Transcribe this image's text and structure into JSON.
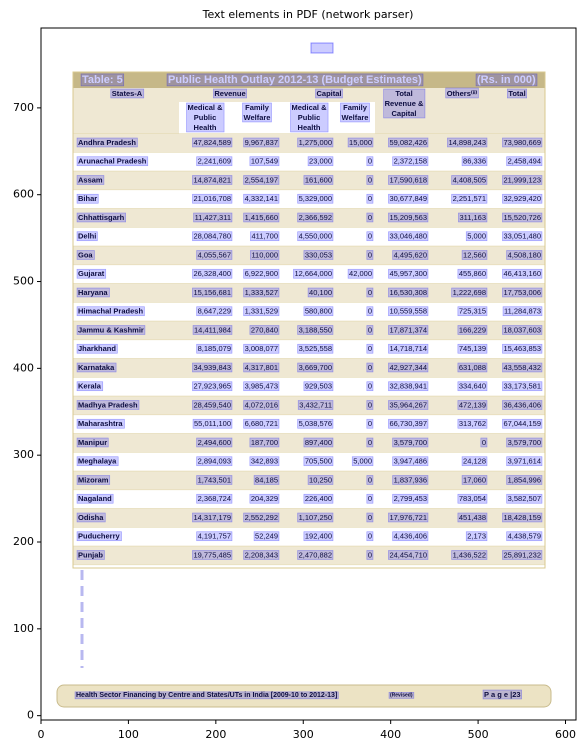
{
  "chart_data": {
    "type": "pdf-page",
    "title": "Text elements in PDF (network parser)",
    "xlim": [
      0,
      612
    ],
    "ylim": [
      -5,
      792
    ],
    "xticks": [
      0,
      100,
      200,
      300,
      400,
      500,
      600
    ],
    "yticks": [
      0,
      100,
      200,
      300,
      400,
      500,
      600,
      700
    ]
  },
  "page": {
    "table_label": "Table: 5",
    "table_title": "Public Health Outlay 2012-13 (Budget Estimates)",
    "table_unit": "(Rs. in 000)",
    "header": {
      "state": "States-A",
      "revenue": "Revenue",
      "capital": "Capital",
      "total_rc": "Total Revenue & Capital",
      "others": "Others⁽ⁱⁱ⁾",
      "total": "Total",
      "sub": [
        "Medical & Public Health",
        "Family Welfare",
        "Medical & Public Health",
        "Family Welfare"
      ]
    },
    "rows": [
      [
        "Andhra Pradesh",
        "47,824,589",
        "9,967,837",
        "1,275,000",
        "15,000",
        "59,082,426",
        "14,898,243",
        "73,980,669"
      ],
      [
        "Arunachal Pradesh",
        "2,241,609",
        "107,549",
        "23,000",
        "0",
        "2,372,158",
        "86,336",
        "2,458,494"
      ],
      [
        "Assam",
        "14,874,821",
        "2,554,197",
        "161,600",
        "0",
        "17,590,618",
        "4,408,505",
        "21,999,123"
      ],
      [
        "Bihar",
        "21,016,708",
        "4,332,141",
        "5,329,000",
        "0",
        "30,677,849",
        "2,251,571",
        "32,929,420"
      ],
      [
        "Chhattisgarh",
        "11,427,311",
        "1,415,660",
        "2,366,592",
        "0",
        "15,209,563",
        "311,163",
        "15,520,726"
      ],
      [
        "Delhi",
        "28,084,780",
        "411,700",
        "4,550,000",
        "0",
        "33,046,480",
        "5,000",
        "33,051,480"
      ],
      [
        "Goa",
        "4,055,567",
        "110,000",
        "330,053",
        "0",
        "4,495,620",
        "12,560",
        "4,508,180"
      ],
      [
        "Gujarat",
        "26,328,400",
        "6,922,900",
        "12,664,000",
        "42,000",
        "45,957,300",
        "455,860",
        "46,413,160"
      ],
      [
        "Haryana",
        "15,156,681",
        "1,333,527",
        "40,100",
        "0",
        "16,530,308",
        "1,222,698",
        "17,753,006"
      ],
      [
        "Himachal Pradesh",
        "8,647,229",
        "1,331,529",
        "580,800",
        "0",
        "10,559,558",
        "725,315",
        "11,284,873"
      ],
      [
        "Jammu & Kashmir",
        "14,411,984",
        "270,840",
        "3,188,550",
        "0",
        "17,871,374",
        "166,229",
        "18,037,603"
      ],
      [
        "Jharkhand",
        "8,185,079",
        "3,008,077",
        "3,525,558",
        "0",
        "14,718,714",
        "745,139",
        "15,463,853"
      ],
      [
        "Karnataka",
        "34,939,843",
        "4,317,801",
        "3,669,700",
        "0",
        "42,927,344",
        "631,088",
        "43,558,432"
      ],
      [
        "Kerala",
        "27,923,965",
        "3,985,473",
        "929,503",
        "0",
        "32,838,941",
        "334,640",
        "33,173,581"
      ],
      [
        "Madhya Pradesh",
        "28,459,540",
        "4,072,016",
        "3,432,711",
        "0",
        "35,964,267",
        "472,139",
        "36,436,406"
      ],
      [
        "Maharashtra",
        "55,011,100",
        "6,680,721",
        "5,038,576",
        "0",
        "66,730,397",
        "313,762",
        "67,044,159"
      ],
      [
        "Manipur",
        "2,494,600",
        "187,700",
        "897,400",
        "0",
        "3,579,700",
        "0",
        "3,579,700"
      ],
      [
        "Meghalaya",
        "2,894,093",
        "342,893",
        "705,500",
        "5,000",
        "3,947,486",
        "24,128",
        "3,971,614"
      ],
      [
        "Mizoram",
        "1,743,501",
        "84,185",
        "10,250",
        "0",
        "1,837,936",
        "17,060",
        "1,854,996"
      ],
      [
        "Nagaland",
        "2,368,724",
        "204,329",
        "226,400",
        "0",
        "2,799,453",
        "783,054",
        "3,582,507"
      ],
      [
        "Odisha",
        "14,317,179",
        "2,552,292",
        "1,107,250",
        "0",
        "17,976,721",
        "451,438",
        "18,428,159"
      ],
      [
        "Puducherry",
        "4,191,757",
        "52,249",
        "192,400",
        "0",
        "4,436,406",
        "2,173",
        "4,438,579"
      ],
      [
        "Punjab",
        "19,775,485",
        "2,208,343",
        "2,470,882",
        "0",
        "24,454,710",
        "1,436,522",
        "25,891,232"
      ]
    ],
    "footer": "Health Sector Financing by Centre and States/UTs in India [2009-10 to 2012-13]",
    "footer_note": "(Revised)",
    "page_number": "P a g e  |23"
  }
}
